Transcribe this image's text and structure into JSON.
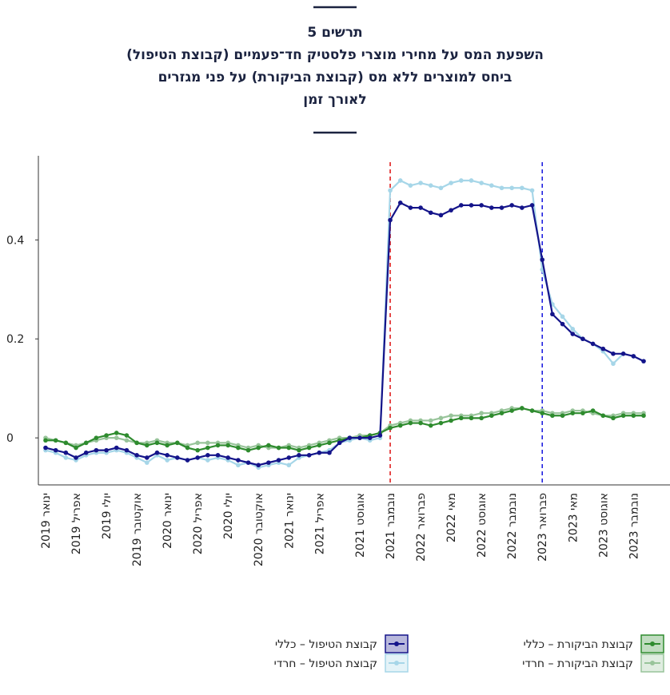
{
  "chart_data": {
    "type": "line",
    "title": [
      "תרשים 5",
      "השפעת המס על מחירי מוצרי פלסטיק חד־פעמיים (קבוצת הטיפול)",
      "ביחס למוצרים ללא מס (קבוצת הביקורת) על פני מגזרים",
      "לאורך זמן"
    ],
    "categories": [
      "ינואר 2019",
      null,
      null,
      "אפריל 2019",
      null,
      null,
      "יולי 2019",
      null,
      null,
      "אוקטובר 2019",
      null,
      null,
      "ינואר 2020",
      null,
      null,
      "אפריל 2020",
      null,
      null,
      "יולי 2020",
      null,
      null,
      "אוקטובר 2020",
      null,
      null,
      "ינואר 2021",
      null,
      null,
      "אפריל 2021",
      null,
      null,
      null,
      "אוגוסט 2021",
      null,
      null,
      "נובמבר 2021",
      null,
      null,
      "פברואר 2022",
      null,
      null,
      "מאי 2022",
      null,
      null,
      "אוגוסט 2022",
      null,
      null,
      "נובמבר 2022",
      null,
      null,
      "פברואר 2023",
      null,
      null,
      "מאי 2023",
      null,
      null,
      "אוגוסט 2023",
      null,
      null,
      "נובמבר 2023",
      null
    ],
    "series": [
      {
        "name": "קבוצת הטיפול – כללי",
        "color": "#14148a",
        "values": [
          -0.02,
          -0.025,
          -0.03,
          -0.04,
          -0.03,
          -0.025,
          -0.025,
          -0.02,
          -0.025,
          -0.035,
          -0.04,
          -0.03,
          -0.035,
          -0.04,
          -0.045,
          -0.04,
          -0.035,
          -0.035,
          -0.04,
          -0.045,
          -0.05,
          -0.055,
          -0.05,
          -0.045,
          -0.04,
          -0.035,
          -0.035,
          -0.03,
          -0.03,
          -0.01,
          0,
          0,
          0,
          0.005,
          0.44,
          0.475,
          0.465,
          0.465,
          0.455,
          0.45,
          0.46,
          0.47,
          0.47,
          0.47,
          0.465,
          0.465,
          0.47,
          0.465,
          0.47,
          0.36,
          0.25,
          0.23,
          0.21,
          0.2,
          0.19,
          0.18,
          0.17,
          0.17,
          0.165,
          0.155
        ]
      },
      {
        "name": "קבוצת הטיפול – חרדי",
        "color": "#a6d6e8",
        "values": [
          -0.025,
          -0.03,
          -0.04,
          -0.045,
          -0.035,
          -0.03,
          -0.03,
          -0.025,
          -0.03,
          -0.04,
          -0.05,
          -0.035,
          -0.045,
          -0.04,
          -0.045,
          -0.04,
          -0.045,
          -0.04,
          -0.045,
          -0.055,
          -0.05,
          -0.06,
          -0.055,
          -0.05,
          -0.055,
          -0.04,
          -0.035,
          -0.03,
          -0.025,
          -0.01,
          -0.005,
          0,
          -0.005,
          0,
          0.5,
          0.52,
          0.51,
          0.515,
          0.51,
          0.505,
          0.515,
          0.52,
          0.52,
          0.515,
          0.51,
          0.505,
          0.505,
          0.505,
          0.5,
          0.34,
          0.27,
          0.245,
          0.22,
          0.2,
          0.19,
          0.175,
          0.15,
          0.17,
          0.165,
          0.155
        ]
      },
      {
        "name": "קבוצת הביקורת – כללי",
        "color": "#2e8b2e",
        "values": [
          -0.005,
          -0.005,
          -0.01,
          -0.02,
          -0.01,
          0,
          0.005,
          0.01,
          0.005,
          -0.01,
          -0.015,
          -0.01,
          -0.015,
          -0.01,
          -0.02,
          -0.025,
          -0.02,
          -0.015,
          -0.015,
          -0.02,
          -0.025,
          -0.02,
          -0.015,
          -0.02,
          -0.02,
          -0.025,
          -0.02,
          -0.015,
          -0.01,
          -0.005,
          0,
          0,
          0.005,
          0.01,
          0.02,
          0.025,
          0.03,
          0.03,
          0.025,
          0.03,
          0.035,
          0.04,
          0.04,
          0.04,
          0.045,
          0.05,
          0.055,
          0.06,
          0.055,
          0.05,
          0.045,
          0.045,
          0.05,
          0.05,
          0.055,
          0.045,
          0.04,
          0.045,
          0.045,
          0.045
        ]
      },
      {
        "name": "קבוצת הביקורת – חרדי",
        "color": "#98c49a",
        "values": [
          0,
          -0.005,
          -0.01,
          -0.015,
          -0.01,
          -0.005,
          0,
          0,
          -0.005,
          -0.01,
          -0.01,
          -0.005,
          -0.01,
          -0.01,
          -0.015,
          -0.01,
          -0.01,
          -0.01,
          -0.01,
          -0.015,
          -0.02,
          -0.015,
          -0.02,
          -0.02,
          -0.015,
          -0.02,
          -0.015,
          -0.01,
          -0.005,
          0,
          0,
          0.005,
          0.005,
          0.01,
          0.025,
          0.03,
          0.035,
          0.035,
          0.035,
          0.04,
          0.045,
          0.045,
          0.045,
          0.05,
          0.05,
          0.055,
          0.06,
          0.06,
          0.055,
          0.055,
          0.05,
          0.05,
          0.055,
          0.055,
          0.05,
          0.045,
          0.045,
          0.05,
          0.05,
          0.05
        ]
      }
    ],
    "vlines": [
      {
        "category": "נובמבר 2021",
        "color": "#e02020"
      },
      {
        "category": "פברואר 2023",
        "color": "#2020e0"
      }
    ],
    "ylim": [
      -0.095,
      0.57
    ],
    "yticks": [
      0,
      0.2,
      0.4
    ],
    "grid": false
  }
}
